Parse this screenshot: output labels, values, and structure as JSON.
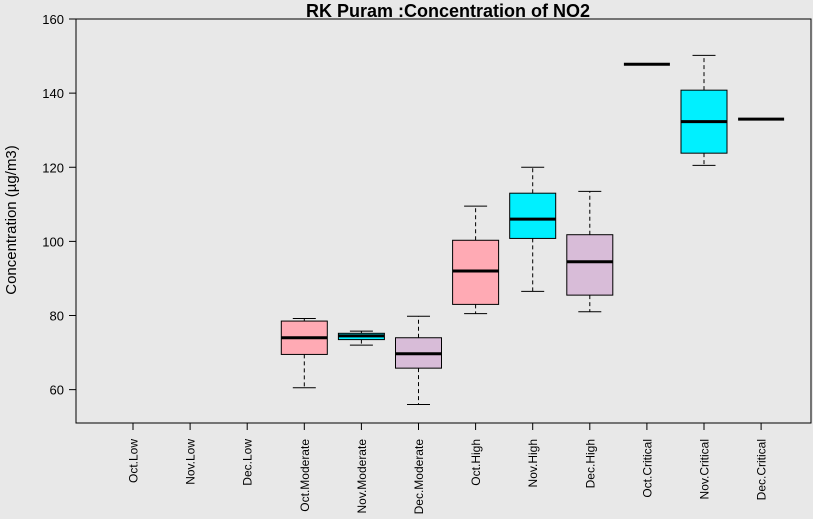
{
  "chart_data": {
    "type": "box",
    "title": "RK Puram :Concentration of NO2",
    "ylabel": "Concentration (µg/m3)",
    "xlabel": "",
    "ylim": [
      51,
      160
    ],
    "yticks": [
      60,
      80,
      100,
      120,
      140,
      160
    ],
    "grid": false,
    "legend": "none",
    "categories": [
      "Oct.Low",
      "Nov.Low",
      "Dec.Low",
      "Oct.Moderate",
      "Nov.Moderate",
      "Dec.Moderate",
      "Oct.High",
      "Nov.High",
      "Dec.High",
      "Oct.Critical",
      "Nov.Critical",
      "Dec.Critical"
    ],
    "boxes": [
      null,
      null,
      null,
      {
        "min": 60.5,
        "q1": 69.5,
        "median": 74.0,
        "q3": 78.5,
        "max": 79.2,
        "color": "#ffaab4"
      },
      {
        "min": 72.0,
        "q1": 73.5,
        "median": 74.5,
        "q3": 75.2,
        "max": 75.8,
        "color": "#00f0ff"
      },
      {
        "min": 56.0,
        "q1": 65.8,
        "median": 69.7,
        "q3": 74.0,
        "max": 79.8,
        "color": "#d8bcd8"
      },
      {
        "min": 80.5,
        "q1": 83.0,
        "median": 92.0,
        "q3": 100.3,
        "max": 109.5,
        "color": "#ffaab4"
      },
      {
        "min": 86.5,
        "q1": 100.8,
        "median": 106.0,
        "q3": 113.0,
        "max": 120.0,
        "color": "#00f0ff"
      },
      {
        "min": 81.0,
        "q1": 85.5,
        "median": 94.5,
        "q3": 101.8,
        "max": 113.5,
        "color": "#d8bcd8"
      },
      {
        "min": 147.8,
        "q1": 147.8,
        "median": 147.8,
        "q3": 147.8,
        "max": 147.8,
        "color": "#ffaab4"
      },
      {
        "min": 120.5,
        "q1": 123.8,
        "median": 132.3,
        "q3": 140.8,
        "max": 150.2,
        "color": "#00f0ff"
      },
      {
        "min": 133.0,
        "q1": 133.0,
        "median": 133.0,
        "q3": 133.0,
        "max": 133.0,
        "color": "#d8bcd8"
      }
    ]
  }
}
